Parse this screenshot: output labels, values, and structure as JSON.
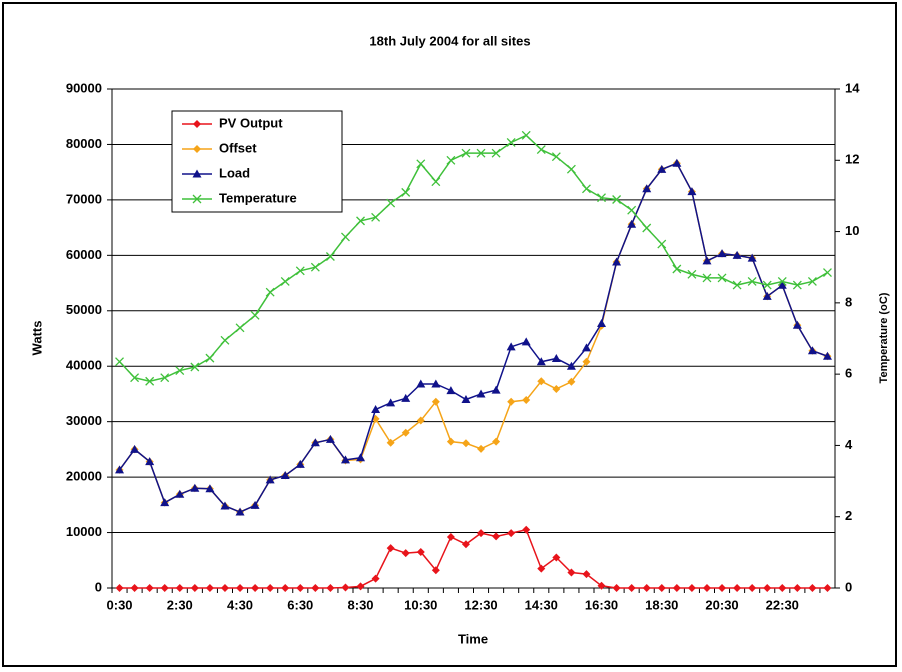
{
  "chart_data": {
    "type": "line",
    "title": "18th July 2004 for all sites",
    "x_label": "Time",
    "y_label": "Watts",
    "y2_label": "Temperature (oC)",
    "categories": [
      "0:30",
      null,
      null,
      null,
      "2:30",
      null,
      null,
      null,
      "4:30",
      null,
      null,
      null,
      "6:30",
      null,
      null,
      null,
      "8:30",
      null,
      null,
      null,
      "10:30",
      null,
      null,
      null,
      "12:30",
      null,
      null,
      null,
      "14:30",
      null,
      null,
      null,
      "16:30",
      null,
      null,
      null,
      "18:30",
      null,
      null,
      null,
      "20:30",
      null,
      null,
      null,
      "22:30",
      null,
      null,
      null
    ],
    "ylim": [
      0,
      90000
    ],
    "yticks": [
      0,
      10000,
      20000,
      30000,
      40000,
      50000,
      60000,
      70000,
      80000,
      90000
    ],
    "y2lim": [
      0,
      14
    ],
    "y2ticks": [
      0,
      2,
      4,
      6,
      8,
      10,
      12,
      14
    ],
    "grid": true,
    "legend": "upper-left",
    "series": [
      {
        "name": "PV Output",
        "color": "#e8141b",
        "marker": "diamond",
        "values": [
          0,
          0,
          0,
          0,
          0,
          0,
          0,
          0,
          0,
          0,
          0,
          0,
          0,
          0,
          0,
          100,
          300,
          1700,
          7200,
          6300,
          6500,
          3200,
          9200,
          7900,
          9900,
          9300,
          9900,
          10500,
          3500,
          5500,
          2800,
          2500,
          400,
          0,
          0,
          0,
          0,
          0,
          0,
          0,
          0,
          0,
          0,
          0,
          0,
          0,
          0,
          0
        ]
      },
      {
        "name": "Offset",
        "color": "#f5a418",
        "marker": "diamond",
        "values": [
          21300,
          25000,
          22800,
          15400,
          16900,
          18000,
          17900,
          14800,
          13700,
          14900,
          19500,
          20300,
          22300,
          26200,
          26800,
          23000,
          23200,
          30500,
          26200,
          28000,
          30200,
          33600,
          26400,
          26100,
          25100,
          26400,
          33600,
          33900,
          37300,
          35900,
          37200,
          40800,
          47300,
          58800,
          65600,
          72000,
          75500,
          76600,
          71500,
          59000,
          60300,
          60000,
          59500,
          52600,
          54600,
          47400,
          42800,
          41800
        ]
      },
      {
        "name": "Load",
        "color": "#10128a",
        "marker": "triangle",
        "values": [
          21300,
          25000,
          22800,
          15400,
          16900,
          18000,
          17900,
          14800,
          13700,
          14900,
          19500,
          20300,
          22300,
          26200,
          26800,
          23100,
          23500,
          32200,
          33400,
          34200,
          36800,
          36800,
          35600,
          34000,
          35000,
          35700,
          43500,
          44400,
          40800,
          41400,
          40000,
          43300,
          47700,
          58800,
          65600,
          72000,
          75500,
          76600,
          71500,
          59000,
          60300,
          60000,
          59500,
          52600,
          54600,
          47400,
          42800,
          41800
        ]
      },
      {
        "name": "Temperature",
        "color": "#3fc03a",
        "marker": "x",
        "axis": "y2",
        "values": [
          6.35,
          5.9,
          5.8,
          5.9,
          6.1,
          6.2,
          6.45,
          6.95,
          7.3,
          7.65,
          8.3,
          8.6,
          8.9,
          9.0,
          9.3,
          9.85,
          10.3,
          10.4,
          10.8,
          11.1,
          11.9,
          11.4,
          12.0,
          12.2,
          12.2,
          12.2,
          12.5,
          12.7,
          12.3,
          12.1,
          11.75,
          11.2,
          10.95,
          10.9,
          10.6,
          10.1,
          9.65,
          8.95,
          8.8,
          8.7,
          8.7,
          8.5,
          8.6,
          8.5,
          8.6,
          8.5,
          8.6,
          8.85
        ]
      }
    ]
  }
}
